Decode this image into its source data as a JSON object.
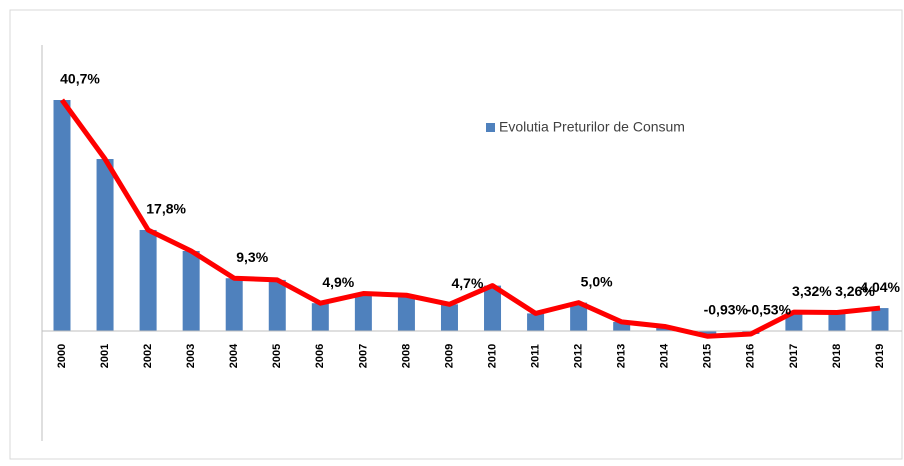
{
  "chart_data": {
    "type": "bar",
    "categories": [
      "2000",
      "2001",
      "2002",
      "2003",
      "2004",
      "2005",
      "2006",
      "2007",
      "2008",
      "2009",
      "2010",
      "2011",
      "2012",
      "2013",
      "2014",
      "2015",
      "2016",
      "2017",
      "2018",
      "2019"
    ],
    "series": [
      {
        "name": "Evolutia Preturilor de Consum",
        "color": "#4f81bd",
        "values": [
          40.7,
          30.3,
          17.8,
          14.1,
          9.3,
          9.0,
          4.9,
          6.6,
          6.3,
          4.7,
          8.0,
          3.1,
          5.0,
          1.6,
          0.8,
          -0.93,
          -0.53,
          3.32,
          3.26,
          4.04
        ],
        "value_labels": [
          "40,7%",
          null,
          "17,8%",
          null,
          "9,3%",
          null,
          "4,9%",
          null,
          null,
          "4,7%",
          null,
          null,
          "5,0%",
          null,
          null,
          "-0,93%",
          "-0,53%",
          "3,32%",
          "3,26%",
          "4,04%"
        ]
      }
    ],
    "line_color": "#ff0000",
    "legend": "upper center"
  }
}
